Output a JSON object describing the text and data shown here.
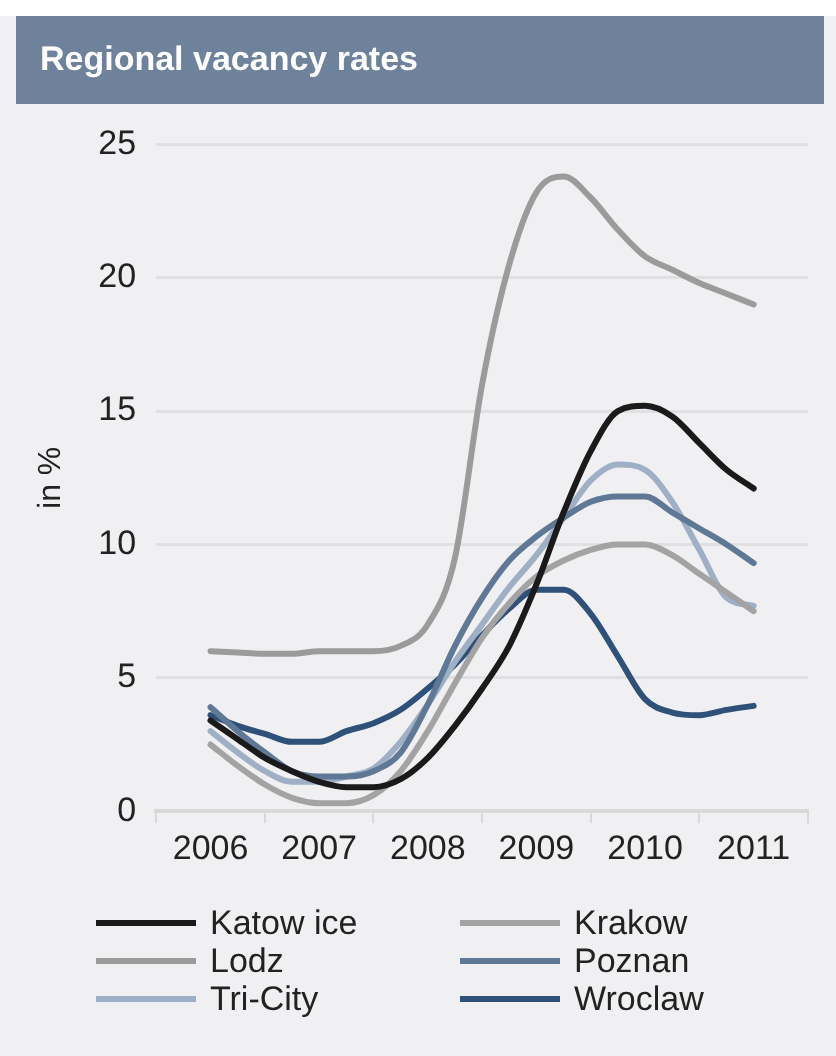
{
  "chart_data": {
    "type": "line",
    "title": "Regional vacancy rates",
    "ylabel": "in %",
    "x": [
      2006.5,
      2006.75,
      2007,
      2007.25,
      2007.5,
      2007.75,
      2008,
      2008.25,
      2008.5,
      2008.75,
      2009,
      2009.25,
      2009.5,
      2009.75,
      2010,
      2010.25,
      2010.5,
      2010.75,
      2011,
      2011.25,
      2011.5
    ],
    "series": [
      {
        "name": "Katow ice",
        "color": "#1a1a1a",
        "values": [
          3.4,
          2.7,
          2.0,
          1.5,
          1.1,
          0.9,
          0.9,
          1.2,
          2.0,
          3.2,
          4.6,
          6.2,
          8.5,
          11.2,
          13.5,
          15.0,
          15.2,
          14.8,
          13.8,
          12.8,
          12.1
        ]
      },
      {
        "name": "Krakow",
        "color": "#a3a3a3",
        "values": [
          2.5,
          1.7,
          1.0,
          0.5,
          0.3,
          0.3,
          0.6,
          1.5,
          3.0,
          4.8,
          6.5,
          7.8,
          8.8,
          9.4,
          9.8,
          10.0,
          10.0,
          9.6,
          8.9,
          8.2,
          7.5
        ]
      },
      {
        "name": "Lodz",
        "color": "#9b9b9b",
        "values": [
          6.0,
          5.95,
          5.9,
          5.9,
          6.0,
          6.0,
          6.0,
          6.2,
          7.0,
          9.5,
          16.0,
          20.5,
          23.2,
          23.8,
          23.0,
          21.8,
          20.8,
          20.3,
          19.8,
          19.4,
          19.0
        ]
      },
      {
        "name": "Poznan",
        "color": "#5f7896",
        "values": [
          3.9,
          3.0,
          2.2,
          1.5,
          1.3,
          1.3,
          1.5,
          2.2,
          4.0,
          6.2,
          8.0,
          9.4,
          10.3,
          11.0,
          11.6,
          11.8,
          11.8,
          11.2,
          10.6,
          10.0,
          9.3
        ]
      },
      {
        "name": "Tri-City",
        "color": "#9fb0c6",
        "values": [
          3.0,
          2.2,
          1.5,
          1.1,
          1.1,
          1.3,
          1.6,
          2.6,
          4.0,
          5.6,
          7.0,
          8.4,
          9.6,
          11.0,
          12.4,
          13.0,
          12.8,
          11.6,
          9.8,
          8.0,
          7.7
        ]
      },
      {
        "name": "Wroclaw",
        "color": "#2f5078",
        "values": [
          3.6,
          3.2,
          2.9,
          2.6,
          2.6,
          3.0,
          3.3,
          3.8,
          4.6,
          5.5,
          6.6,
          7.6,
          8.3,
          8.3,
          7.4,
          5.8,
          4.2,
          3.7,
          3.6,
          3.8,
          3.95
        ]
      }
    ],
    "xlim": [
      2006,
      2012
    ],
    "xticks": [
      {
        "value": 2006,
        "label": null
      },
      {
        "value": 2006.5,
        "label": "2006"
      },
      {
        "value": 2007,
        "label": null
      },
      {
        "value": 2007.5,
        "label": "2007"
      },
      {
        "value": 2008,
        "label": null
      },
      {
        "value": 2008.5,
        "label": "2008"
      },
      {
        "value": 2009,
        "label": null
      },
      {
        "value": 2009.5,
        "label": "2009"
      },
      {
        "value": 2010,
        "label": null
      },
      {
        "value": 2010.5,
        "label": "2010"
      },
      {
        "value": 2011,
        "label": null
      },
      {
        "value": 2011.5,
        "label": "2011"
      },
      {
        "value": 2012,
        "label": null
      }
    ],
    "ylim": [
      0,
      25
    ],
    "yticks": [
      0,
      5,
      10,
      15,
      20,
      25
    ],
    "grid": "y",
    "legend": "bottom",
    "marker": "none",
    "line_style": "solid"
  }
}
